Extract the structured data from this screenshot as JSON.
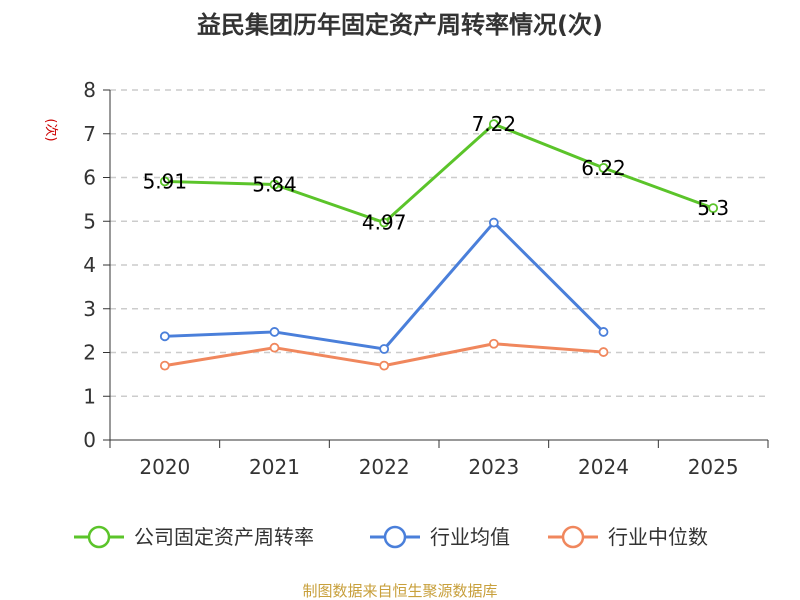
{
  "chart_data": {
    "type": "line",
    "title": "益民集团历年固定资产周转率情况(次)",
    "ylabel": "(次)",
    "categories": [
      "2020",
      "2021",
      "2022",
      "2023",
      "2024",
      "2025"
    ],
    "ylim": [
      0,
      8
    ],
    "yticks": [
      "0",
      "1",
      "2",
      "3",
      "4",
      "5",
      "6",
      "7",
      "8"
    ],
    "grid": true,
    "legend_position": "bottom",
    "series": [
      {
        "name": "公司固定资产周转率",
        "color": "#5bc42a",
        "values": [
          5.91,
          5.84,
          4.97,
          7.22,
          6.22,
          5.3
        ],
        "labels": [
          "5.91",
          "5.84",
          "4.97",
          "7.22",
          "6.22",
          "5.3"
        ]
      },
      {
        "name": "行业均值",
        "color": "#4a7fda",
        "values": [
          2.37,
          2.47,
          2.08,
          4.97,
          2.47,
          null
        ]
      },
      {
        "name": "行业中位数",
        "color": "#f0875d",
        "values": [
          1.7,
          2.11,
          1.7,
          2.2,
          2.01,
          null
        ]
      }
    ],
    "ylabel_color": "#cc0000"
  },
  "source": {
    "text": "制图数据来自恒生聚源数据库",
    "color": "#c8a03c"
  }
}
